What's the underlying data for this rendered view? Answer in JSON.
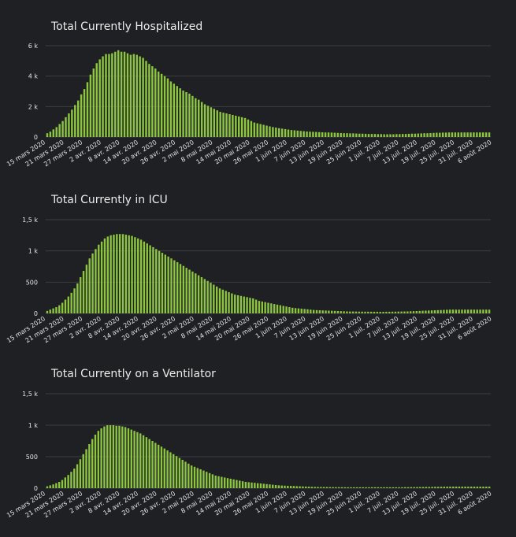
{
  "colors": {
    "background": "#1f2023",
    "bar": "#8dc63f",
    "bar_stroke": "#5f8e26",
    "grid": "#3c3e42",
    "text": "#e6e6e6"
  },
  "chart_data": [
    {
      "type": "bar",
      "title": "Total Currently Hospitalized",
      "xlabel": "",
      "ylabel": "",
      "ylim": [
        0,
        6000
      ],
      "yticks": [
        0,
        2000,
        4000,
        6000
      ],
      "ytick_labels": [
        "0",
        "2 k",
        "4 k",
        "6 k"
      ],
      "grid": true,
      "x_start": "2020-03-15",
      "x_tick_labels": [
        "15 mars 2020",
        "21 mars 2020",
        "27 mars 2020",
        "2 avr. 2020",
        "8 avr. 2020",
        "14 avr. 2020",
        "20 avr. 2020",
        "26 avr. 2020",
        "2 mai 2020",
        "8 mai 2020",
        "14 mai 2020",
        "20 mai 2020",
        "26 mai 2020",
        "1 juin 2020",
        "7 juin 2020",
        "13 juin 2020",
        "19 juin 2020",
        "25 juin 2020",
        "1 juil. 2020",
        "7 juil. 2020",
        "13 juil. 2020",
        "19 juil. 2020",
        "25 juil. 2020",
        "31 juil. 2020",
        "6 août 2020"
      ],
      "values": [
        250,
        350,
        500,
        650,
        850,
        1050,
        1300,
        1550,
        1800,
        2100,
        2400,
        2800,
        3150,
        3600,
        4100,
        4500,
        4850,
        5100,
        5300,
        5450,
        5450,
        5500,
        5600,
        5700,
        5600,
        5600,
        5500,
        5400,
        5450,
        5400,
        5300,
        5200,
        5000,
        4800,
        4650,
        4500,
        4300,
        4150,
        4000,
        3850,
        3650,
        3500,
        3350,
        3200,
        3050,
        2950,
        2850,
        2700,
        2550,
        2450,
        2300,
        2150,
        2050,
        1950,
        1850,
        1750,
        1650,
        1600,
        1550,
        1500,
        1450,
        1400,
        1350,
        1300,
        1250,
        1150,
        1050,
        950,
        900,
        850,
        800,
        750,
        700,
        650,
        620,
        580,
        550,
        520,
        490,
        460,
        440,
        420,
        400,
        380,
        360,
        350,
        340,
        330,
        320,
        310,
        300,
        300,
        290,
        280,
        270,
        260,
        250,
        250,
        240,
        240,
        230,
        220,
        220,
        210,
        200,
        200,
        200,
        190,
        190,
        180,
        180,
        180,
        180,
        190,
        190,
        200,
        200,
        210,
        220,
        220,
        230,
        240,
        250,
        250,
        260,
        270,
        280,
        280,
        290,
        290,
        300,
        300,
        300,
        300,
        300,
        300,
        300,
        300,
        300,
        300,
        300,
        300,
        300,
        300
      ]
    },
    {
      "type": "bar",
      "title": "Total Currently in ICU",
      "xlabel": "",
      "ylabel": "",
      "ylim": [
        0,
        1500
      ],
      "yticks": [
        0,
        500,
        1000,
        1500
      ],
      "ytick_labels": [
        "0",
        "500",
        "1 k",
        "1,5 k"
      ],
      "grid": true,
      "x_start": "2020-03-15",
      "x_tick_labels": [
        "15 mars 2020",
        "21 mars 2020",
        "27 mars 2020",
        "2 avr. 2020",
        "8 avr. 2020",
        "14 avr. 2020",
        "20 avr. 2020",
        "26 avr. 2020",
        "2 mai 2020",
        "8 mai 2020",
        "14 mai 2020",
        "20 mai 2020",
        "26 mai 2020",
        "1 juin 2020",
        "7 juin 2020",
        "13 juin 2020",
        "19 juin 2020",
        "25 juin 2020",
        "1 juil. 2020",
        "7 juil. 2020",
        "13 juil. 2020",
        "19 juil. 2020",
        "25 juil. 2020",
        "31 juil. 2020",
        "6 août 2020"
      ],
      "values": [
        40,
        60,
        80,
        100,
        130,
        170,
        220,
        270,
        330,
        400,
        480,
        580,
        680,
        780,
        880,
        960,
        1030,
        1100,
        1150,
        1200,
        1230,
        1250,
        1260,
        1270,
        1270,
        1270,
        1260,
        1250,
        1240,
        1220,
        1200,
        1180,
        1150,
        1120,
        1090,
        1060,
        1030,
        1000,
        970,
        940,
        910,
        880,
        850,
        820,
        790,
        760,
        730,
        700,
        670,
        640,
        610,
        580,
        550,
        520,
        490,
        460,
        430,
        400,
        380,
        360,
        340,
        320,
        300,
        290,
        280,
        270,
        260,
        250,
        240,
        220,
        200,
        190,
        180,
        170,
        160,
        150,
        140,
        130,
        120,
        110,
        100,
        90,
        85,
        80,
        75,
        70,
        65,
        60,
        55,
        52,
        50,
        48,
        46,
        44,
        42,
        40,
        38,
        36,
        34,
        32,
        30,
        30,
        29,
        28,
        28,
        27,
        27,
        26,
        26,
        26,
        25,
        25,
        26,
        26,
        27,
        28,
        29,
        30,
        31,
        32,
        34,
        36,
        38,
        40,
        42,
        44,
        46,
        48,
        50,
        52,
        54,
        56,
        58,
        60,
        60,
        60,
        60,
        60,
        60,
        60,
        60,
        60,
        60,
        60,
        60,
        60,
        60
      ]
    },
    {
      "type": "bar",
      "title": "Total Currently on a Ventilator",
      "xlabel": "",
      "ylabel": "",
      "ylim": [
        0,
        1500
      ],
      "yticks": [
        0,
        500,
        1000,
        1500
      ],
      "ytick_labels": [
        "0",
        "500",
        "1 k",
        "1,5 k"
      ],
      "grid": true,
      "x_start": "2020-03-15",
      "x_tick_labels": [
        "15 mars 2020",
        "21 mars 2020",
        "27 mars 2020",
        "2 avr. 2020",
        "8 avr. 2020",
        "14 avr. 2020",
        "20 avr. 2020",
        "26 avr. 2020",
        "2 mai 2020",
        "8 mai 2020",
        "14 mai 2020",
        "20 mai 2020",
        "26 mai 2020",
        "1 juin 2020",
        "7 juin 2020",
        "13 juin 2020",
        "19 juin 2020",
        "25 juin 2020",
        "1 juil. 2020",
        "7 juil. 2020",
        "13 juil. 2020",
        "19 juil. 2020",
        "25 juil. 2020",
        "31 juil. 2020",
        "6 août 2020"
      ],
      "values": [
        30,
        45,
        60,
        80,
        100,
        130,
        170,
        210,
        260,
        310,
        380,
        460,
        540,
        620,
        700,
        780,
        850,
        910,
        950,
        980,
        1000,
        1000,
        1000,
        990,
        990,
        980,
        970,
        950,
        930,
        910,
        890,
        870,
        840,
        810,
        780,
        750,
        720,
        690,
        660,
        630,
        600,
        570,
        540,
        510,
        480,
        450,
        420,
        390,
        360,
        340,
        320,
        300,
        280,
        260,
        240,
        220,
        200,
        190,
        180,
        170,
        160,
        150,
        140,
        130,
        120,
        110,
        100,
        95,
        90,
        85,
        80,
        75,
        70,
        65,
        60,
        55,
        50,
        45,
        42,
        40,
        38,
        36,
        34,
        32,
        30,
        28,
        26,
        24,
        22,
        20,
        20,
        19,
        18,
        18,
        17,
        17,
        16,
        16,
        16,
        15,
        15,
        15,
        15,
        15,
        15,
        15,
        15,
        15,
        15,
        15,
        15,
        15,
        15,
        15,
        15,
        15,
        15,
        15,
        15,
        16,
        16,
        17,
        17,
        18,
        18,
        19,
        20,
        20,
        21,
        22,
        22,
        23,
        24,
        25,
        25,
        25,
        25,
        25,
        25,
        25,
        25,
        25,
        25,
        25,
        25,
        25,
        25,
        25
      ]
    }
  ]
}
